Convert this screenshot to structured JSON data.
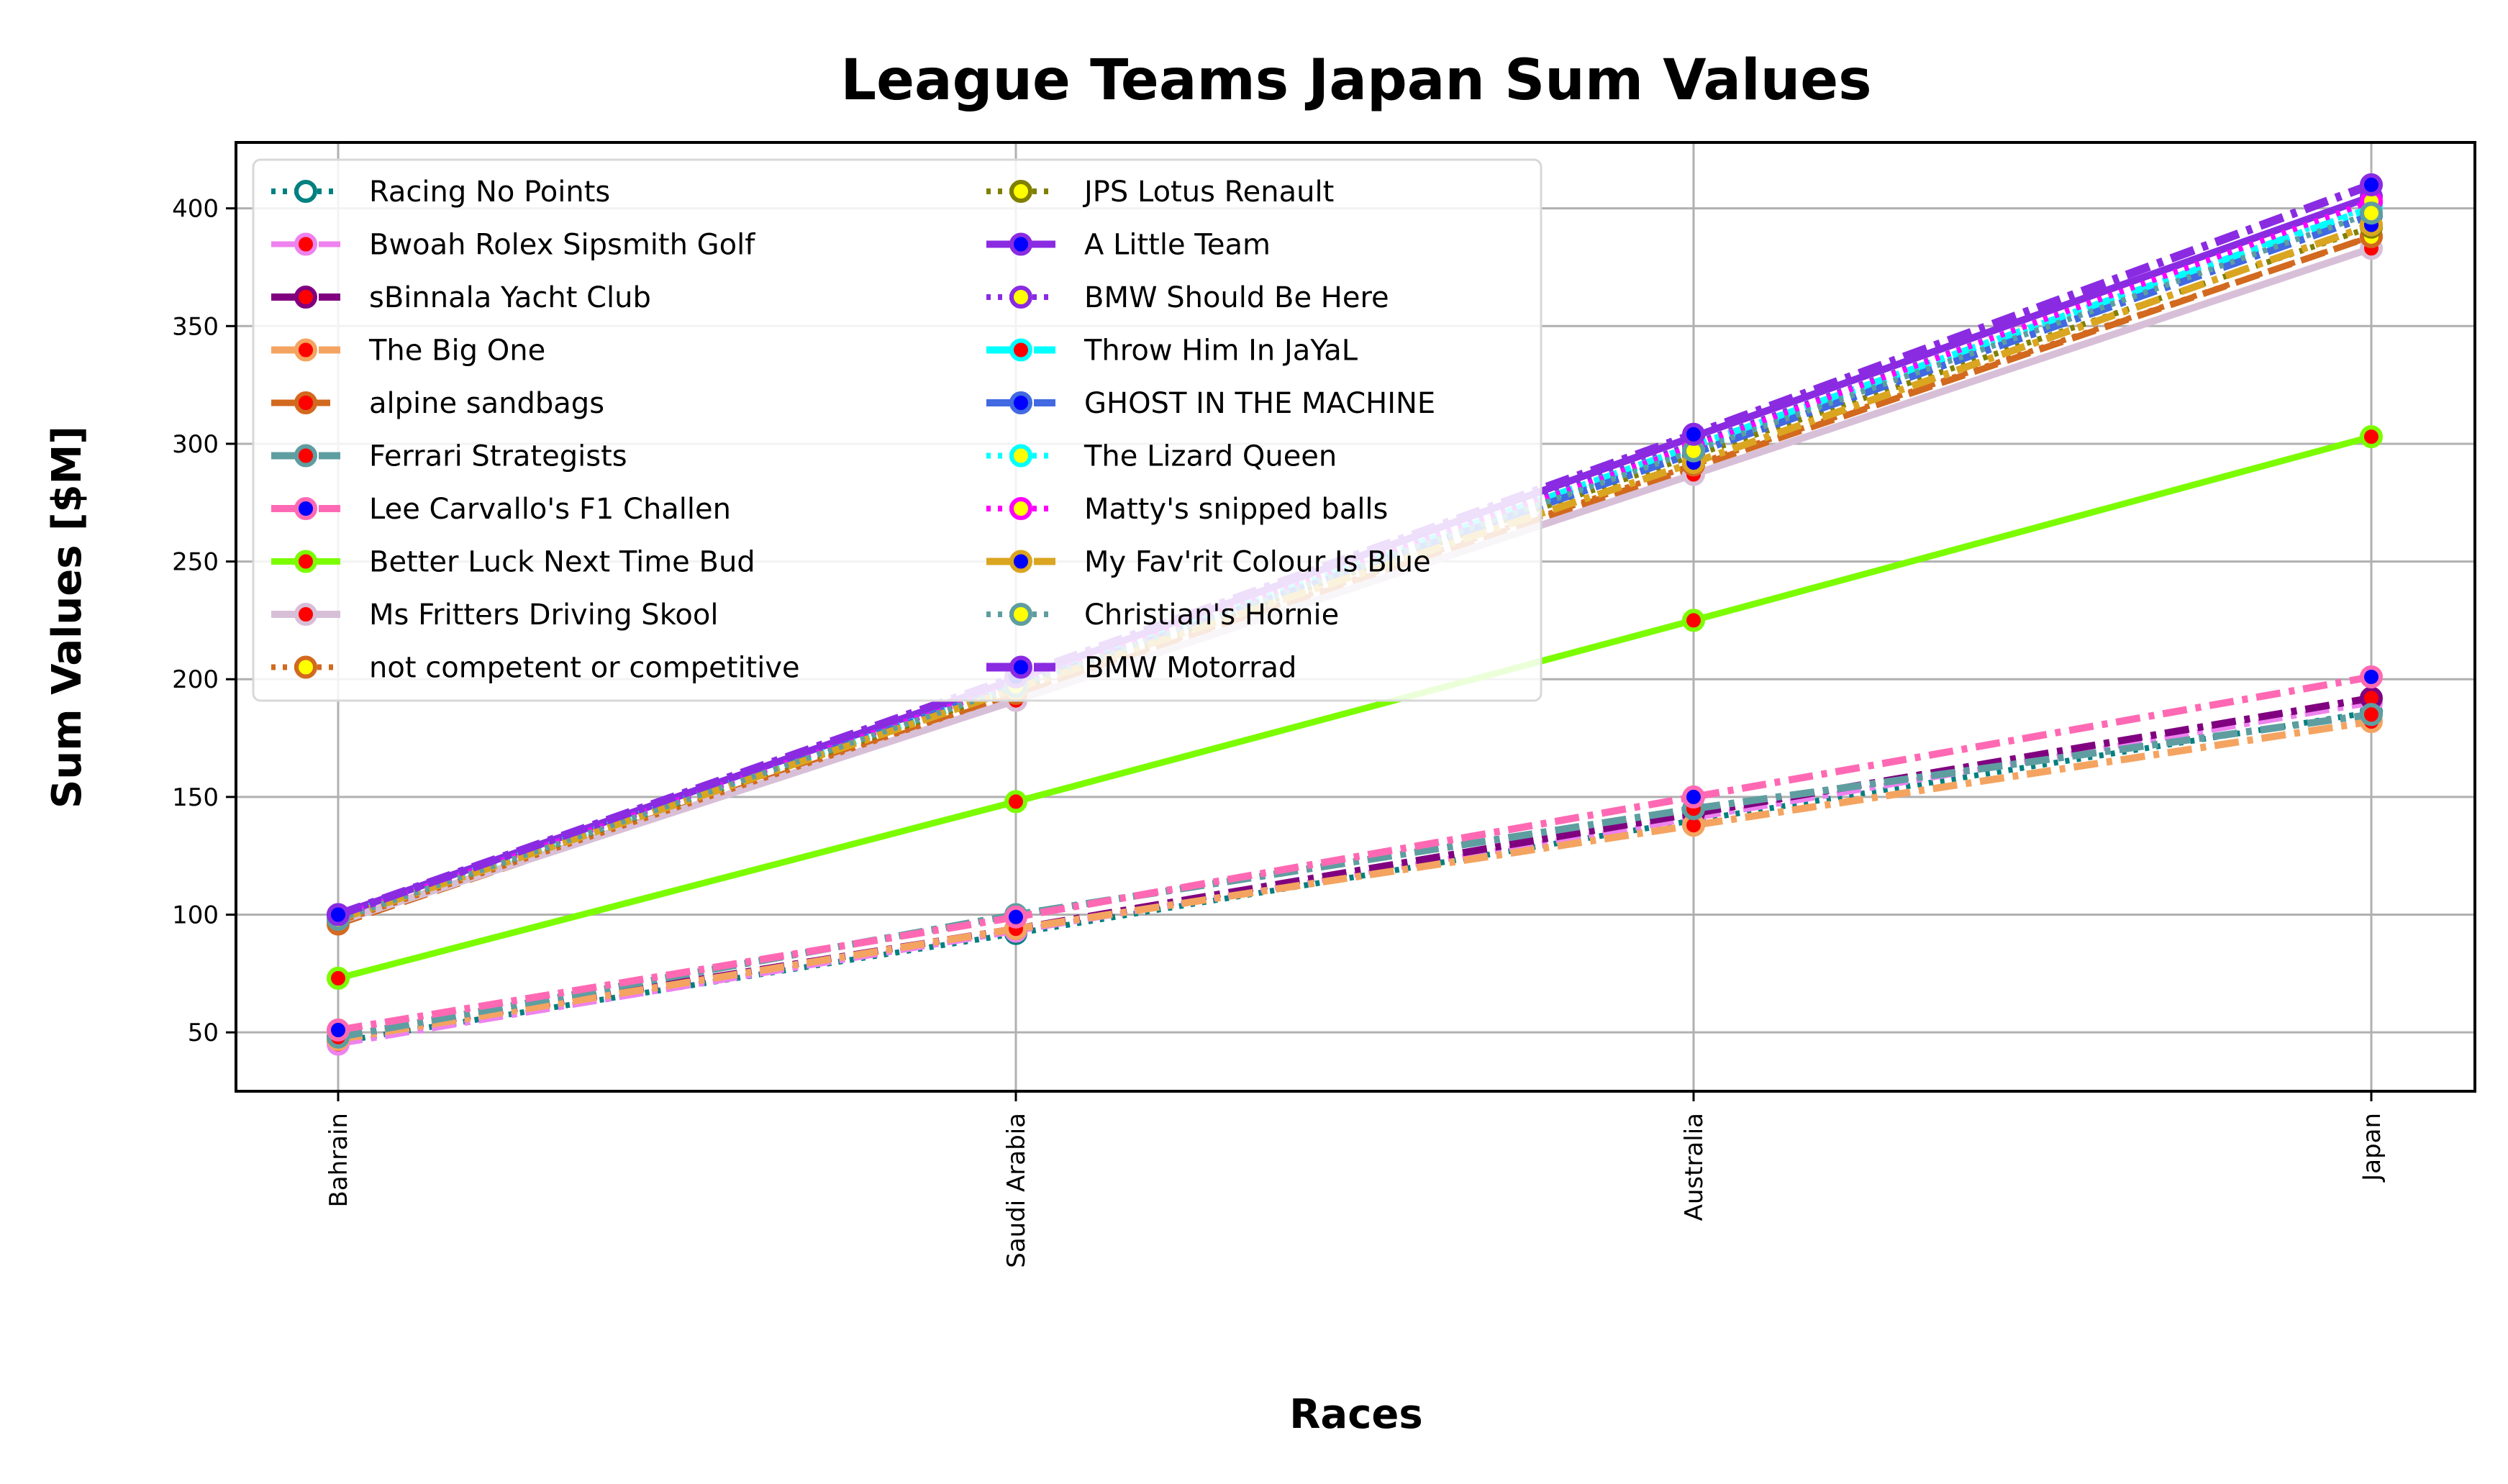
{
  "chart_data": {
    "type": "line",
    "title": "League Teams Japan Sum Values",
    "xlabel": "Races",
    "ylabel": "Sum Values [$M]",
    "categories": [
      "Bahrain",
      "Saudi Arabia",
      "Australia",
      "Japan"
    ],
    "ylim": [
      25,
      428
    ],
    "yticks": [
      50,
      100,
      150,
      200,
      250,
      300,
      350,
      400
    ],
    "grid": true,
    "legend_placement": "upper-left, 2 columns",
    "series": [
      {
        "name": "Racing No Points",
        "values": [
          46,
          92,
          140,
          186
        ],
        "color": "#008080",
        "dash": "dot",
        "width": 8,
        "marker_fill": "#ffffff",
        "marker_edge": "#008080"
      },
      {
        "name": "Bwoah Rolex Sipsmith Golf",
        "values": [
          45,
          93,
          141,
          190
        ],
        "color": "#ee82ee",
        "dash": "dashdot",
        "width": 8,
        "marker_fill": "#ff0000",
        "marker_edge": "#ee82ee"
      },
      {
        "name": "sBinnala Yacht Club",
        "values": [
          48,
          94,
          143,
          192
        ],
        "color": "#800080",
        "dash": "dashdot",
        "width": 10,
        "marker_fill": "#ff0000",
        "marker_edge": "#800080"
      },
      {
        "name": "The Big One",
        "values": [
          47,
          94,
          138,
          182
        ],
        "color": "#f4a460",
        "dash": "dashdot",
        "width": 10,
        "marker_fill": "#ff0000",
        "marker_edge": "#f4a460"
      },
      {
        "name": "alpine sandbags",
        "values": [
          96,
          193,
          290,
          388
        ],
        "color": "#d2691e",
        "dash": "dash",
        "width": 9,
        "marker_fill": "#ff0000",
        "marker_edge": "#d2691e"
      },
      {
        "name": "Ferrari Strategists",
        "values": [
          48,
          100,
          145,
          185
        ],
        "color": "#5f9ea0",
        "dash": "dashdot",
        "width": 10,
        "marker_fill": "#ff0000",
        "marker_edge": "#5f9ea0"
      },
      {
        "name": "Lee Carvallo's F1 Challen",
        "values": [
          51,
          99,
          150,
          201
        ],
        "color": "#ff69b4",
        "dash": "dashdot",
        "width": 10,
        "marker_fill": "#0000ff",
        "marker_edge": "#ff69b4"
      },
      {
        "name": "Better Luck Next Time Bud",
        "values": [
          73,
          148,
          225,
          303
        ],
        "color": "#7cfc00",
        "dash": "solid",
        "width": 9,
        "marker_fill": "#ff0000",
        "marker_edge": "#7cfc00"
      },
      {
        "name": "Ms Fritters Driving Skool",
        "values": [
          97,
          191,
          287,
          383
        ],
        "color": "#d8bfd8",
        "dash": "solid",
        "width": 10,
        "marker_fill": "#ff0000",
        "marker_edge": "#d8bfd8"
      },
      {
        "name": "not competent or competitive",
        "values": [
          97,
          194,
          291,
          388
        ],
        "color": "#d2691e",
        "dash": "dot",
        "width": 8,
        "marker_fill": "#ffff00",
        "marker_edge": "#d2691e"
      },
      {
        "name": "JPS Lotus Renault",
        "values": [
          98,
          196,
          295,
          392
        ],
        "color": "#808000",
        "dash": "dot",
        "width": 8,
        "marker_fill": "#ffff00",
        "marker_edge": "#808000"
      },
      {
        "name": "A Little Team",
        "values": [
          100,
          200,
          303,
          405
        ],
        "color": "#8a2be2",
        "dash": "solid",
        "width": 10,
        "marker_fill": "#0000ff",
        "marker_edge": "#8a2be2"
      },
      {
        "name": "BMW Should Be Here",
        "values": [
          99,
          198,
          300,
          402
        ],
        "color": "#8a2be2",
        "dash": "dot",
        "width": 8,
        "marker_fill": "#ffff00",
        "marker_edge": "#8a2be2"
      },
      {
        "name": "Throw Him In JaYaL",
        "values": [
          99,
          197,
          299,
          400
        ],
        "color": "#00ffff",
        "dash": "dashdot",
        "width": 10,
        "marker_fill": "#ff0000",
        "marker_edge": "#00ffff"
      },
      {
        "name": "GHOST IN THE MACHINE",
        "values": [
          98,
          197,
          296,
          397
        ],
        "color": "#4169e1",
        "dash": "dashdot",
        "width": 10,
        "marker_fill": "#0000ff",
        "marker_edge": "#4169e1"
      },
      {
        "name": "The Lizard Queen",
        "values": [
          99,
          198,
          298,
          401
        ],
        "color": "#00ffff",
        "dash": "dot",
        "width": 8,
        "marker_fill": "#ffff00",
        "marker_edge": "#00ffff"
      },
      {
        "name": "Matty's snipped balls",
        "values": [
          99,
          198,
          299,
          403
        ],
        "color": "#ff00ff",
        "dash": "dot",
        "width": 8,
        "marker_fill": "#ffff00",
        "marker_edge": "#ff00ff"
      },
      {
        "name": "My Fav'rit Colour Is Blue",
        "values": [
          98,
          196,
          292,
          393
        ],
        "color": "#daa520",
        "dash": "dashdot",
        "width": 10,
        "marker_fill": "#0000ff",
        "marker_edge": "#daa520"
      },
      {
        "name": "Christian's Hornie",
        "values": [
          98,
          197,
          297,
          398
        ],
        "color": "#5f9ea0",
        "dash": "dot",
        "width": 8,
        "marker_fill": "#ffff00",
        "marker_edge": "#5f9ea0"
      },
      {
        "name": "BMW Motorrad",
        "values": [
          100,
          201,
          304,
          410
        ],
        "color": "#8a2be2",
        "dash": "dashdot",
        "width": 12,
        "marker_fill": "#0000ff",
        "marker_edge": "#8a2be2"
      }
    ]
  }
}
